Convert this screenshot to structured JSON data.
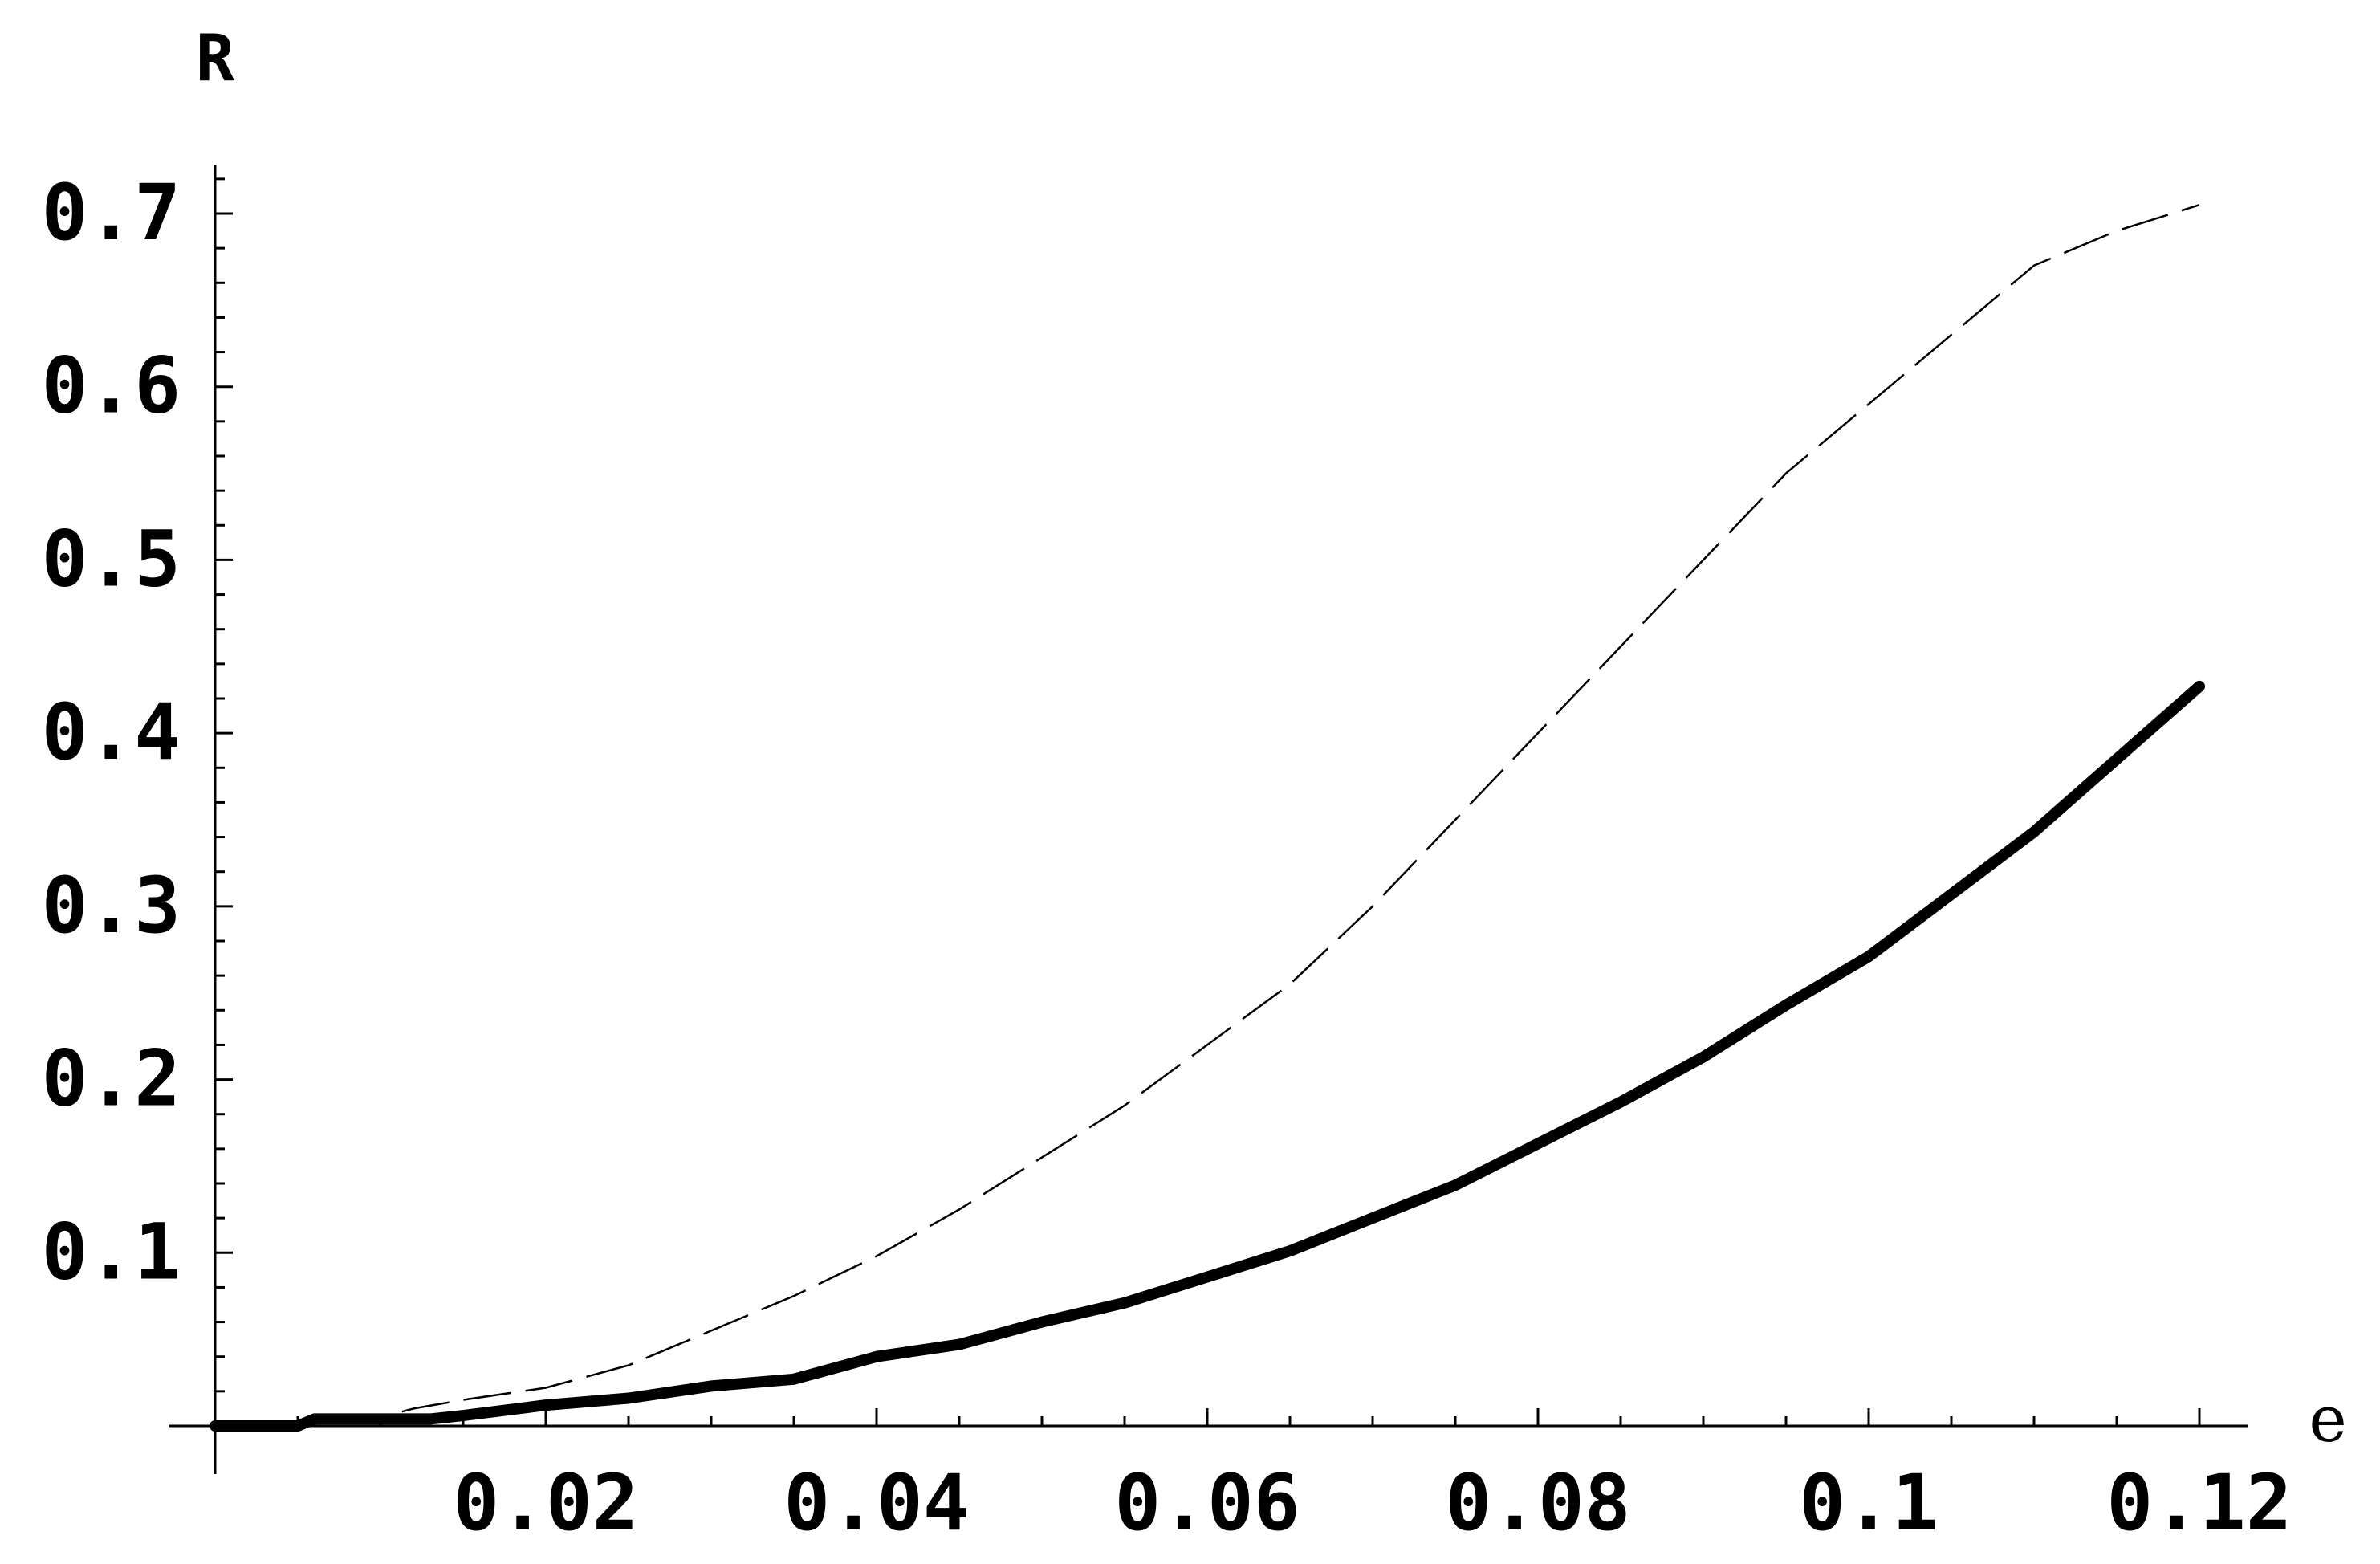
{
  "chart_data": {
    "type": "line",
    "title": "",
    "xlabel": "e",
    "ylabel": "R",
    "xlim": [
      0,
      0.12
    ],
    "ylim": [
      0,
      0.72
    ],
    "grid": false,
    "legend": "none",
    "x_ticks": [
      {
        "value": 0.02,
        "label": "0.02"
      },
      {
        "value": 0.04,
        "label": "0.04"
      },
      {
        "value": 0.06,
        "label": "0.06"
      },
      {
        "value": 0.08,
        "label": "0.08"
      },
      {
        "value": 0.1,
        "label": "0.1"
      },
      {
        "value": 0.12,
        "label": "0.12"
      }
    ],
    "y_ticks": [
      {
        "value": 0.1,
        "label": "0.1"
      },
      {
        "value": 0.2,
        "label": "0.2"
      },
      {
        "value": 0.3,
        "label": "0.3"
      },
      {
        "value": 0.4,
        "label": "0.4"
      },
      {
        "value": 0.5,
        "label": "0.5"
      },
      {
        "value": 0.6,
        "label": "0.6"
      },
      {
        "value": 0.7,
        "label": "0.7"
      }
    ],
    "series": [
      {
        "style": "dashed-thin",
        "color": "#000000",
        "x": [
          0.0,
          0.005,
          0.01,
          0.012,
          0.015,
          0.02,
          0.025,
          0.03,
          0.035,
          0.04,
          0.045,
          0.05,
          0.055,
          0.06,
          0.065,
          0.07,
          0.075,
          0.08,
          0.085,
          0.09,
          0.095,
          0.1,
          0.105,
          0.11,
          0.115,
          0.12
        ],
        "y": [
          0.0,
          0.002,
          0.005,
          0.01,
          0.015,
          0.022,
          0.035,
          0.055,
          0.075,
          0.098,
          0.125,
          0.155,
          0.185,
          0.22,
          0.255,
          0.3,
          0.35,
          0.4,
          0.45,
          0.5,
          0.55,
          0.59,
          0.63,
          0.67,
          0.69,
          0.705
        ]
      },
      {
        "style": "solid-thick",
        "color": "#000000",
        "x": [
          0.0,
          0.005,
          0.006,
          0.01,
          0.013,
          0.015,
          0.02,
          0.025,
          0.03,
          0.035,
          0.04,
          0.045,
          0.05,
          0.055,
          0.06,
          0.065,
          0.07,
          0.075,
          0.08,
          0.085,
          0.09,
          0.095,
          0.1,
          0.105,
          0.11,
          0.115,
          0.12
        ],
        "y": [
          0.0,
          0.0,
          0.004,
          0.004,
          0.004,
          0.006,
          0.012,
          0.016,
          0.023,
          0.027,
          0.04,
          0.047,
          0.06,
          0.071,
          0.086,
          0.101,
          0.12,
          0.139,
          0.163,
          0.187,
          0.213,
          0.243,
          0.271,
          0.307,
          0.343,
          0.385,
          0.427
        ]
      }
    ]
  }
}
